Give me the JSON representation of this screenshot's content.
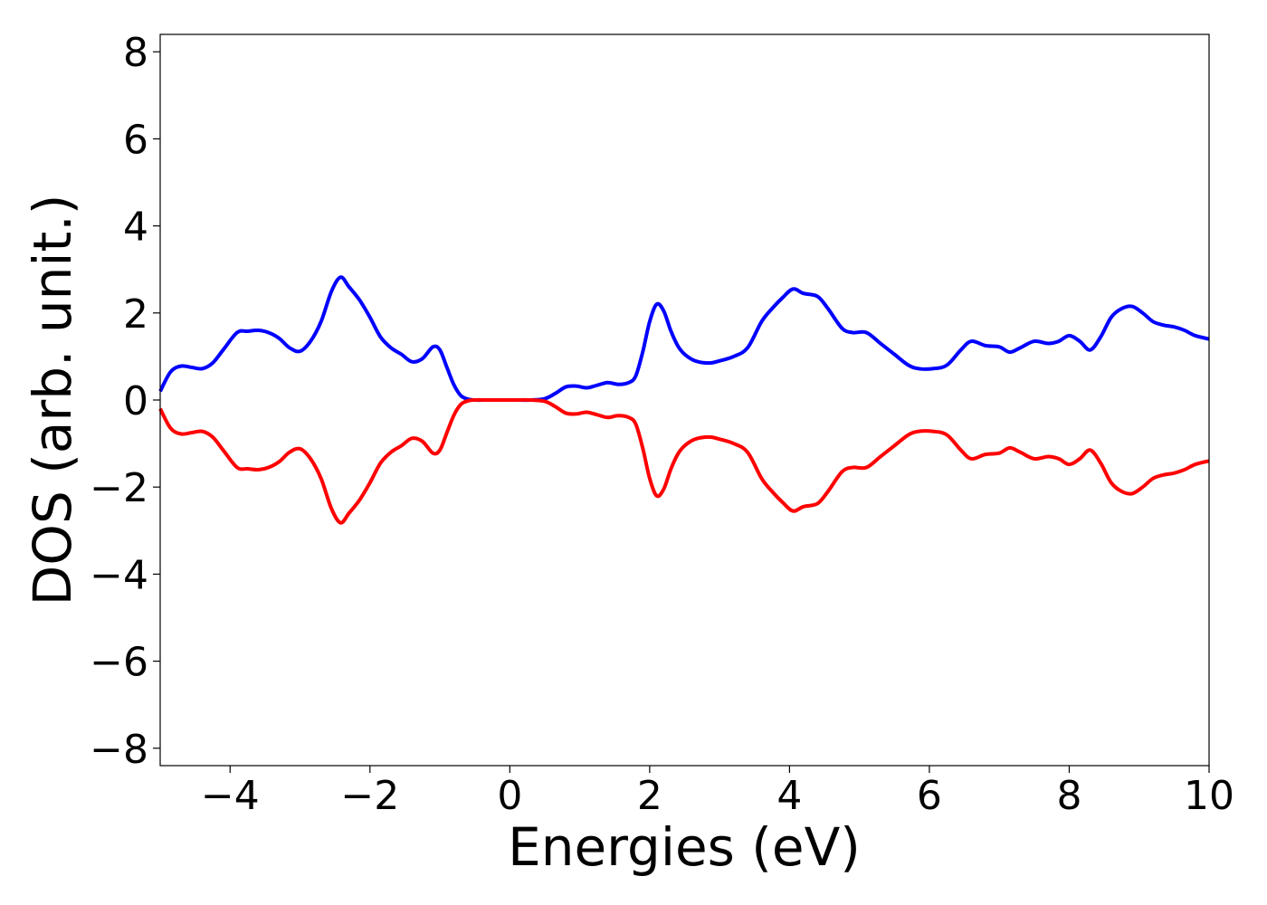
{
  "chart_data": {
    "type": "line",
    "title": "",
    "xlabel": "Energies (eV)",
    "ylabel": "DOS (arb. unit.)",
    "xlim": [
      -5,
      10
    ],
    "ylim": [
      -8.4,
      8.4
    ],
    "grid": false,
    "legend": "none",
    "x_ticks": [
      -4,
      -2,
      0,
      2,
      4,
      6,
      8,
      10
    ],
    "y_ticks": [
      -8,
      -6,
      -4,
      -2,
      0,
      2,
      4,
      6,
      8
    ],
    "x_tick_labels": [
      "−4",
      "−2",
      "0",
      "2",
      "4",
      "6",
      "8",
      "10"
    ],
    "y_tick_labels": [
      "−8",
      "−6",
      "−4",
      "−2",
      "0",
      "2",
      "4",
      "6",
      "8"
    ],
    "series": [
      {
        "color": "#0000ff",
        "x": [
          -5.0,
          -4.85,
          -4.7,
          -4.55,
          -4.4,
          -4.25,
          -4.1,
          -3.9,
          -3.75,
          -3.6,
          -3.45,
          -3.3,
          -3.15,
          -3.0,
          -2.85,
          -2.7,
          -2.55,
          -2.42,
          -2.3,
          -2.15,
          -2.0,
          -1.85,
          -1.7,
          -1.55,
          -1.4,
          -1.25,
          -1.1,
          -1.0,
          -0.9,
          -0.8,
          -0.7,
          -0.6,
          -0.5,
          -0.3,
          0.0,
          0.3,
          0.5,
          0.65,
          0.8,
          0.95,
          1.1,
          1.25,
          1.4,
          1.55,
          1.7,
          1.8,
          1.9,
          2.0,
          2.1,
          2.2,
          2.3,
          2.4,
          2.5,
          2.65,
          2.85,
          3.0,
          3.2,
          3.4,
          3.6,
          3.75,
          3.9,
          4.05,
          4.2,
          4.4,
          4.55,
          4.75,
          4.9,
          5.1,
          5.3,
          5.5,
          5.7,
          5.85,
          6.05,
          6.25,
          6.45,
          6.6,
          6.8,
          7.0,
          7.15,
          7.3,
          7.5,
          7.7,
          7.85,
          8.0,
          8.15,
          8.3,
          8.45,
          8.6,
          8.75,
          8.9,
          9.05,
          9.2,
          9.35,
          9.5,
          9.65,
          9.8,
          10.0
        ],
        "y": [
          0.2,
          0.65,
          0.78,
          0.75,
          0.72,
          0.85,
          1.15,
          1.55,
          1.58,
          1.6,
          1.55,
          1.42,
          1.2,
          1.12,
          1.35,
          1.8,
          2.5,
          2.82,
          2.6,
          2.3,
          1.9,
          1.45,
          1.2,
          1.05,
          0.88,
          0.95,
          1.22,
          1.15,
          0.75,
          0.35,
          0.1,
          0.02,
          0.0,
          0.0,
          0.0,
          0.0,
          0.03,
          0.15,
          0.3,
          0.32,
          0.28,
          0.34,
          0.4,
          0.36,
          0.4,
          0.55,
          1.1,
          1.8,
          2.2,
          2.05,
          1.6,
          1.25,
          1.05,
          0.9,
          0.85,
          0.9,
          1.0,
          1.2,
          1.8,
          2.1,
          2.35,
          2.55,
          2.45,
          2.38,
          2.1,
          1.65,
          1.55,
          1.55,
          1.3,
          1.05,
          0.8,
          0.72,
          0.72,
          0.8,
          1.15,
          1.35,
          1.25,
          1.22,
          1.1,
          1.2,
          1.35,
          1.3,
          1.35,
          1.48,
          1.35,
          1.15,
          1.45,
          1.9,
          2.1,
          2.15,
          2.0,
          1.8,
          1.72,
          1.68,
          1.6,
          1.48,
          1.4
        ]
      },
      {
        "color": "#ff0000",
        "x": [
          -5.0,
          -4.85,
          -4.7,
          -4.55,
          -4.4,
          -4.25,
          -4.1,
          -3.9,
          -3.75,
          -3.6,
          -3.45,
          -3.3,
          -3.15,
          -3.0,
          -2.85,
          -2.7,
          -2.55,
          -2.42,
          -2.3,
          -2.15,
          -2.0,
          -1.85,
          -1.7,
          -1.55,
          -1.4,
          -1.25,
          -1.1,
          -1.0,
          -0.9,
          -0.8,
          -0.7,
          -0.6,
          -0.5,
          -0.3,
          0.0,
          0.3,
          0.5,
          0.65,
          0.8,
          0.95,
          1.1,
          1.25,
          1.4,
          1.55,
          1.7,
          1.8,
          1.9,
          2.0,
          2.1,
          2.2,
          2.3,
          2.4,
          2.5,
          2.65,
          2.85,
          3.0,
          3.2,
          3.4,
          3.6,
          3.75,
          3.9,
          4.05,
          4.2,
          4.4,
          4.55,
          4.75,
          4.9,
          5.1,
          5.3,
          5.5,
          5.7,
          5.85,
          6.05,
          6.25,
          6.45,
          6.6,
          6.8,
          7.0,
          7.15,
          7.3,
          7.5,
          7.7,
          7.85,
          8.0,
          8.15,
          8.3,
          8.45,
          8.6,
          8.75,
          8.9,
          9.05,
          9.2,
          9.35,
          9.5,
          9.65,
          9.8,
          10.0
        ],
        "y": [
          -0.2,
          -0.65,
          -0.78,
          -0.75,
          -0.72,
          -0.85,
          -1.15,
          -1.55,
          -1.58,
          -1.6,
          -1.55,
          -1.42,
          -1.2,
          -1.12,
          -1.35,
          -1.8,
          -2.5,
          -2.82,
          -2.6,
          -2.3,
          -1.9,
          -1.45,
          -1.2,
          -1.05,
          -0.88,
          -0.95,
          -1.22,
          -1.15,
          -0.75,
          -0.35,
          -0.1,
          -0.02,
          0.0,
          0.0,
          0.0,
          0.0,
          -0.03,
          -0.15,
          -0.3,
          -0.32,
          -0.28,
          -0.34,
          -0.4,
          -0.36,
          -0.4,
          -0.55,
          -1.1,
          -1.8,
          -2.2,
          -2.05,
          -1.6,
          -1.25,
          -1.05,
          -0.9,
          -0.85,
          -0.9,
          -1.0,
          -1.2,
          -1.8,
          -2.1,
          -2.35,
          -2.55,
          -2.45,
          -2.38,
          -2.1,
          -1.65,
          -1.55,
          -1.55,
          -1.3,
          -1.05,
          -0.8,
          -0.72,
          -0.72,
          -0.8,
          -1.15,
          -1.35,
          -1.25,
          -1.22,
          -1.1,
          -1.2,
          -1.35,
          -1.3,
          -1.35,
          -1.48,
          -1.35,
          -1.15,
          -1.45,
          -1.9,
          -2.1,
          -2.15,
          -2.0,
          -1.8,
          -1.72,
          -1.68,
          -1.6,
          -1.48,
          -1.4
        ]
      }
    ]
  }
}
